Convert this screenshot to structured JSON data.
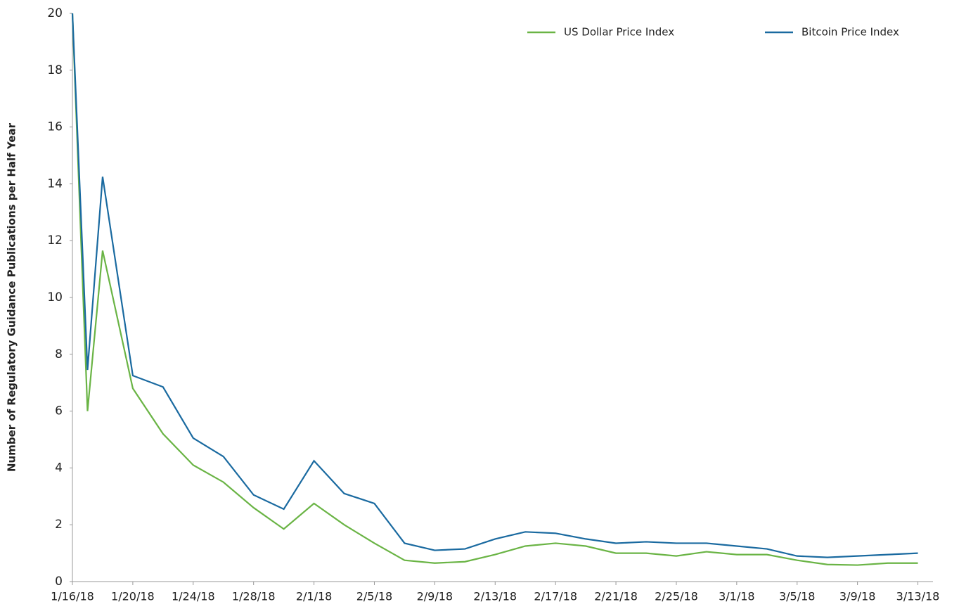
{
  "chart_data": {
    "type": "line",
    "ylabel": "Number of Regulatory Guidance Publications per Half Year",
    "x": [
      "1/16/18",
      "1/17/18",
      "1/18/18",
      "1/20/18",
      "1/22/18",
      "1/24/18",
      "1/26/18",
      "1/28/18",
      "1/30/18",
      "2/1/18",
      "2/3/18",
      "2/5/18",
      "2/7/18",
      "2/9/18",
      "2/11/18",
      "2/13/18",
      "2/15/18",
      "2/17/18",
      "2/19/18",
      "2/21/18",
      "2/23/18",
      "2/25/18",
      "2/27/18",
      "3/1/18",
      "3/3/18",
      "3/5/18",
      "3/7/18",
      "3/9/18",
      "3/11/18",
      "3/13/18"
    ],
    "series": [
      {
        "name": "US Dollar Price Index",
        "color": "#6ab445",
        "values": [
          20,
          6.0,
          11.65,
          6.8,
          5.2,
          4.1,
          3.5,
          2.6,
          1.85,
          2.75,
          2.0,
          1.35,
          0.75,
          0.65,
          0.7,
          0.95,
          1.25,
          1.35,
          1.25,
          1.0,
          1.0,
          0.9,
          1.05,
          0.95,
          0.95,
          0.75,
          0.6,
          0.58,
          0.65,
          0.65
        ]
      },
      {
        "name": "Bitcoin Price Index",
        "color": "#1a6aa0",
        "values": [
          20,
          7.45,
          14.25,
          7.25,
          6.85,
          5.05,
          4.4,
          3.05,
          2.55,
          4.25,
          3.1,
          2.75,
          1.35,
          1.1,
          1.15,
          1.5,
          1.75,
          1.7,
          1.5,
          1.35,
          1.4,
          1.35,
          1.35,
          1.25,
          1.15,
          0.9,
          0.85,
          0.9,
          0.95,
          1.0
        ]
      }
    ],
    "xlim": [
      "1/16/18",
      "3/14/18"
    ],
    "xticks": [
      "1/16/18",
      "1/20/18",
      "1/24/18",
      "1/28/18",
      "2/1/18",
      "2/5/18",
      "2/9/18",
      "2/13/18",
      "2/17/18",
      "2/21/18",
      "2/25/18",
      "3/1/18",
      "3/5/18",
      "3/9/18",
      "3/13/18"
    ],
    "ylim": [
      0,
      20
    ],
    "yticks": [
      0,
      2,
      4,
      6,
      8,
      10,
      12,
      14,
      16,
      18,
      20
    ],
    "grid": false,
    "legend": "top"
  }
}
